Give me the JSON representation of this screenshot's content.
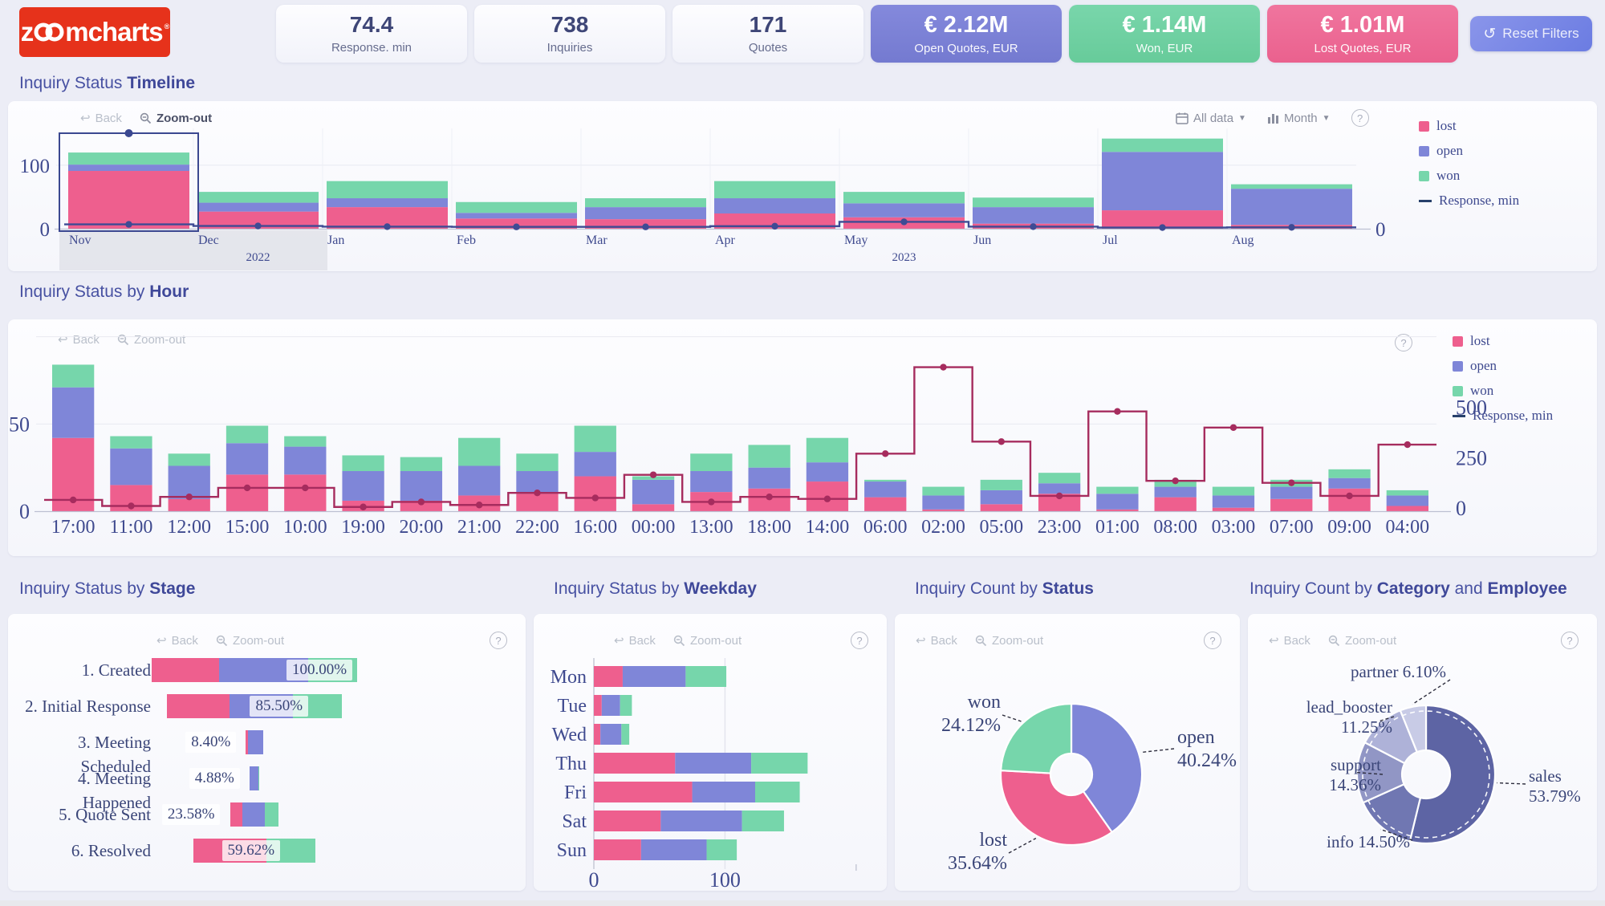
{
  "header": {
    "logo_text_left": "z",
    "logo_text_right": "mcharts",
    "logo_reg": "®",
    "kpis": [
      {
        "value": "74.4",
        "label": "Response. min"
      },
      {
        "value": "738",
        "label": "Inquiries"
      },
      {
        "value": "171",
        "label": "Quotes"
      },
      {
        "value": "€ 2.12M",
        "label": "Open Quotes, EUR",
        "color": "#7b80d6"
      },
      {
        "value": "€ 1.14M",
        "label": "Won, EUR",
        "color": "#6fd0a2"
      },
      {
        "value": "€ 1.01M",
        "label": "Lost Quotes, EUR",
        "color": "#ee6391"
      }
    ],
    "reset_button": "Reset Filters",
    "reset_icon": "↺"
  },
  "titles": {
    "timeline": {
      "prefix": "Inquiry Status ",
      "bold": "Timeline"
    },
    "hour": {
      "prefix": "Inquiry Status by ",
      "bold": "Hour"
    },
    "stage": {
      "prefix": "Inquiry Status by ",
      "bold": "Stage"
    },
    "weekday": {
      "prefix": "Inquiry Status by ",
      "bold": "Weekday"
    },
    "status": {
      "prefix": "Inquiry Count by ",
      "bold": "Status"
    },
    "category": {
      "prefix": "Inquiry Count by ",
      "bold": "Category",
      "mid": " and ",
      "bold2": "Employee"
    }
  },
  "toolbar": {
    "back": "Back",
    "zoom_out": "Zoom-out",
    "help": "?",
    "range": "All data",
    "unit": "Month"
  },
  "colors": {
    "lost": "#ee5f8e",
    "open": "#7f86d8",
    "won": "#76d6ab",
    "line_red": "#a62c5e",
    "line_navy": "#3e4b94"
  },
  "chart_data": [
    {
      "id": "timeline",
      "type": "bar-line",
      "title": "Inquiry Status Timeline",
      "categories": [
        "Nov",
        "Dec",
        "Jan",
        "Feb",
        "Mar",
        "Apr",
        "May",
        "Jun",
        "Jul",
        "Aug"
      ],
      "year_markers": [
        {
          "label": "2022",
          "center_index": 1.5
        },
        {
          "label": "2023",
          "center_index": 6.5
        }
      ],
      "series": [
        {
          "name": "lost",
          "color": "#ee5f8e",
          "values": [
            91,
            27,
            34,
            16,
            15,
            24,
            18,
            8,
            29,
            6
          ]
        },
        {
          "name": "open",
          "color": "#7f86d8",
          "values": [
            10,
            14,
            14,
            9,
            19,
            24,
            22,
            26,
            92,
            57
          ]
        },
        {
          "name": "won",
          "color": "#76d6ab",
          "values": [
            19,
            17,
            27,
            17,
            14,
            27,
            18,
            15,
            21,
            7
          ]
        }
      ],
      "line": {
        "name": "Response, min",
        "color": "#3e4b94",
        "values": [
          95,
          60,
          45,
          40,
          40,
          55,
          150,
          45,
          25,
          30
        ],
        "axis_max": 2200
      },
      "left_ticks": [
        {
          "value": 0,
          "label": "0"
        },
        {
          "value": 100,
          "label": "100"
        }
      ],
      "right_ticks": [
        {
          "value": 0,
          "label": "0"
        }
      ],
      "left_max": 158,
      "selection": {
        "category_index": 0,
        "band_to_index": 1
      },
      "legend": [
        {
          "label": "lost",
          "color": "#ee5f8e"
        },
        {
          "label": "open",
          "color": "#7f86d8"
        },
        {
          "label": "won",
          "color": "#76d6ab"
        },
        {
          "label": "Response, min",
          "swatch": "line"
        }
      ]
    },
    {
      "id": "by_hour",
      "type": "bar-line",
      "title": "Inquiry Status by Hour",
      "categories": [
        "17:00",
        "11:00",
        "12:00",
        "15:00",
        "10:00",
        "19:00",
        "20:00",
        "21:00",
        "22:00",
        "16:00",
        "00:00",
        "13:00",
        "18:00",
        "14:00",
        "06:00",
        "02:00",
        "05:00",
        "23:00",
        "01:00",
        "08:00",
        "03:00",
        "07:00",
        "09:00",
        "04:00"
      ],
      "series": [
        {
          "name": "lost",
          "color": "#ee5f8e",
          "values": [
            42,
            15,
            7,
            21,
            21,
            6,
            6,
            9,
            10,
            20,
            4,
            11,
            13,
            17,
            8,
            1,
            4,
            10,
            1,
            8,
            2,
            7,
            13,
            3
          ]
        },
        {
          "name": "open",
          "color": "#7f86d8",
          "values": [
            29,
            21,
            19,
            18,
            16,
            17,
            17,
            17,
            13,
            14,
            14,
            12,
            12,
            11,
            9,
            8,
            8,
            6,
            9,
            6,
            7,
            7,
            6,
            6
          ]
        },
        {
          "name": "won",
          "color": "#76d6ab",
          "values": [
            13,
            7,
            7,
            10,
            6,
            9,
            8,
            16,
            10,
            15,
            2,
            10,
            13,
            14,
            1,
            5,
            6,
            6,
            4,
            4,
            5,
            4,
            5,
            3
          ]
        }
      ],
      "line": {
        "name": "Response, min",
        "color": "#a62c5e",
        "values": [
          40,
          10,
          55,
          100,
          100,
          5,
          30,
          15,
          75,
          50,
          165,
          30,
          55,
          45,
          270,
          700,
          330,
          60,
          480,
          135,
          400,
          125,
          60,
          315
        ],
        "axis_max": 850
      },
      "left_ticks": [
        {
          "value": 0,
          "label": "0"
        },
        {
          "value": 50,
          "label": "50"
        }
      ],
      "right_ticks": [
        {
          "value": 0,
          "label": "0"
        },
        {
          "value": 250,
          "label": "250"
        },
        {
          "value": 500,
          "label": "500"
        }
      ],
      "left_max": 98,
      "legend": [
        {
          "label": "lost",
          "color": "#ee5f8e"
        },
        {
          "label": "open",
          "color": "#7f86d8"
        },
        {
          "label": "won",
          "color": "#76d6ab"
        },
        {
          "label": "Response, min",
          "swatch": "line"
        }
      ]
    },
    {
      "id": "by_stage",
      "type": "funnel-bar",
      "title": "Inquiry Status by Stage",
      "rows": [
        {
          "label": "1. Created",
          "pct_label": "100.00%",
          "pct": 100,
          "segments": {
            "lost": 33,
            "open": 43,
            "won": 24
          },
          "label_pos": "inside-right"
        },
        {
          "label": "2. Initial Response",
          "pct_label": "85.50%",
          "pct": 85.5,
          "segments": {
            "lost": 36,
            "open": 36,
            "won": 28
          },
          "label_pos": "inside-right2"
        },
        {
          "label": "3. Meeting Scheduled",
          "pct_label": "8.40%",
          "pct": 8.4,
          "segments": {
            "lost": 15,
            "open": 85,
            "won": 0
          },
          "label_pos": "left"
        },
        {
          "label": "4. Meeting Happened",
          "pct_label": "4.88%",
          "pct": 4.88,
          "segments": {
            "lost": 0,
            "open": 90,
            "won": 10
          },
          "label_pos": "left"
        },
        {
          "label": "5. Quote Sent",
          "pct_label": "23.58%",
          "pct": 23.58,
          "segments": {
            "lost": 25,
            "open": 46,
            "won": 29
          },
          "label_pos": "left"
        },
        {
          "label": "6. Resolved",
          "pct_label": "59.62%",
          "pct": 59.62,
          "segments": {
            "lost": 60,
            "open": 0,
            "won": 40
          },
          "label_pos": "inside-center"
        }
      ]
    },
    {
      "id": "by_weekday",
      "type": "hbar",
      "title": "Inquiry Status by Weekday",
      "categories": [
        "Mon",
        "Tue",
        "Wed",
        "Thu",
        "Fri",
        "Sat",
        "Sun"
      ],
      "series": [
        {
          "name": "lost",
          "color": "#ee5f8e",
          "values": [
            22,
            6,
            5,
            62,
            75,
            51,
            36
          ]
        },
        {
          "name": "open",
          "color": "#7f86d8",
          "values": [
            48,
            14,
            16,
            58,
            48,
            62,
            50
          ]
        },
        {
          "name": "won",
          "color": "#76d6ab",
          "values": [
            31,
            9,
            6,
            43,
            34,
            32,
            23
          ]
        }
      ],
      "x_ticks": [
        {
          "value": 0,
          "label": "0"
        },
        {
          "value": 100,
          "label": "100"
        }
      ],
      "x_max": 205
    },
    {
      "id": "by_status",
      "type": "donut",
      "title": "Inquiry Count by Status",
      "slices": [
        {
          "label": "open",
          "pct": 40.24,
          "pct_label": "40.24%",
          "color": "#7f86d8"
        },
        {
          "label": "lost",
          "pct": 35.64,
          "pct_label": "35.64%",
          "color": "#ee5f8e"
        },
        {
          "label": "won",
          "pct": 24.12,
          "pct_label": "24.12%",
          "color": "#76d6ab"
        }
      ]
    },
    {
      "id": "by_category",
      "type": "donut",
      "title": "Inquiry Count by Category and Employee",
      "slices": [
        {
          "label": "sales",
          "pct": 53.79,
          "pct_label": "53.79%",
          "color": "#5d64a4"
        },
        {
          "label": "info",
          "pct": 14.5,
          "pct_label": "14.50%",
          "color": "#7077b2"
        },
        {
          "label": "support",
          "pct": 14.36,
          "pct_label": "14.36%",
          "color": "#9196c5"
        },
        {
          "label": "lead_booster",
          "pct": 11.25,
          "pct_label": "11.25%",
          "color": "#aeb2d8"
        },
        {
          "label": "partner",
          "pct": 6.1,
          "pct_label": "6.10%",
          "color": "#c8cbe6"
        }
      ],
      "dashed_ring": true
    }
  ]
}
